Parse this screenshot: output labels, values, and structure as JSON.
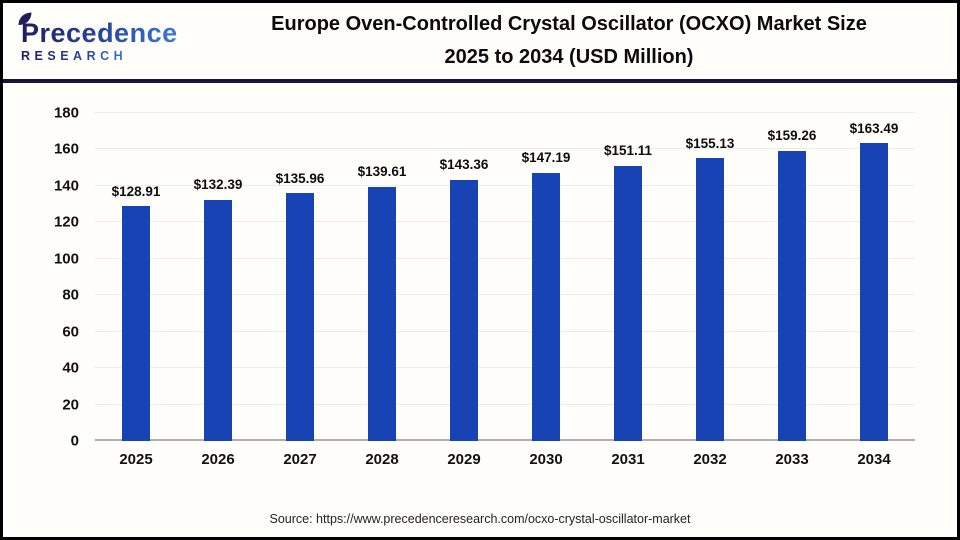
{
  "header": {
    "logo_brand": "Precedence",
    "logo_sub": "RESEARCH",
    "title_line1": "Europe Oven-Controlled Crystal Oscillator (OCXO) Market Size",
    "title_line2": "2025 to 2034 (USD Million)"
  },
  "chart_data": {
    "type": "bar",
    "title": "Europe Oven-Controlled Crystal Oscillator (OCXO) Market Size 2025 to 2034 (USD Million)",
    "categories": [
      "2025",
      "2026",
      "2027",
      "2028",
      "2029",
      "2030",
      "2031",
      "2032",
      "2033",
      "2034"
    ],
    "values": [
      128.91,
      132.39,
      135.96,
      139.61,
      143.36,
      147.19,
      151.11,
      155.13,
      159.26,
      163.49
    ],
    "value_labels": [
      "$128.91",
      "$132.39",
      "$135.96",
      "$139.61",
      "$143.36",
      "$147.19",
      "$151.11",
      "$155.13",
      "$159.26",
      "$163.49"
    ],
    "xlabel": "",
    "ylabel": "",
    "ylim": [
      0,
      180
    ],
    "yticks": [
      0,
      20,
      40,
      60,
      80,
      100,
      120,
      140,
      160,
      180
    ],
    "grid": true,
    "legend": "none",
    "bar_color": "#1843b5",
    "unit": "USD Million"
  },
  "footer": {
    "source": "Source: https://www.precedenceresearch.com/ocxo-crystal-oscillator-market"
  },
  "colors": {
    "bar": "#1843b5",
    "header_separator": "#14143f",
    "page_border": "#000000",
    "logo_dark": "#1f1d5e",
    "logo_light": "#3e7ad6",
    "gridline": "#ececec",
    "axis_line": "#b0b0b0",
    "background": "#fffefb"
  }
}
